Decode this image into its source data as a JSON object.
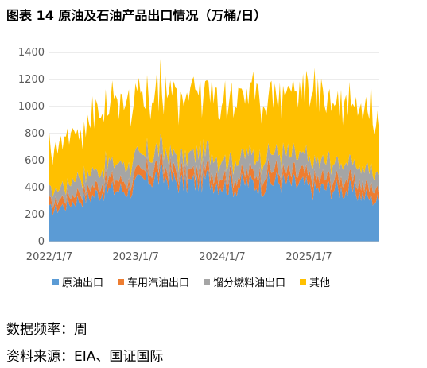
{
  "title": "图表 14 原油及石油产品出口情况（万桶/日）",
  "chart_data": {
    "type": "area",
    "stacked": true,
    "title": "",
    "xlabel": "",
    "ylabel": "",
    "ylim": [
      0,
      1400
    ],
    "yticks": [
      0,
      200,
      400,
      600,
      800,
      1000,
      1200,
      1400
    ],
    "xticks": [
      "2022/1/7",
      "2023/1/7",
      "2024/1/7",
      "2025/1/7"
    ],
    "x_range": [
      "2022/1/7",
      "2025/10/31"
    ],
    "grid": "horizontal",
    "legend_position": "bottom",
    "frequency": "weekly",
    "series": [
      {
        "name": "原油出口",
        "color": "#5B9BD5",
        "points": [
          [
            "2022/1/7",
            230
          ],
          [
            "2022/3/4",
            265
          ],
          [
            "2022/4/29",
            310
          ],
          [
            "2022/6/24",
            330
          ],
          [
            "2022/8/19",
            375
          ],
          [
            "2022/10/14",
            385
          ],
          [
            "2022/12/9",
            385
          ],
          [
            "2023/2/3",
            440
          ],
          [
            "2023/3/31",
            480
          ],
          [
            "2023/5/26",
            470
          ],
          [
            "2023/7/21",
            430
          ],
          [
            "2023/9/15",
            440
          ],
          [
            "2023/11/10",
            470
          ],
          [
            "2024/1/5",
            430
          ],
          [
            "2024/3/1",
            410
          ],
          [
            "2024/4/26",
            440
          ],
          [
            "2024/6/21",
            420
          ],
          [
            "2024/8/16",
            450
          ],
          [
            "2024/10/11",
            430
          ],
          [
            "2024/12/6",
            420
          ],
          [
            "2025/1/31",
            380
          ],
          [
            "2025/3/28",
            400
          ],
          [
            "2025/5/23",
            390
          ],
          [
            "2025/7/18",
            370
          ],
          [
            "2025/9/12",
            330
          ],
          [
            "2025/10/31",
            300
          ]
        ]
      },
      {
        "name": "车用汽油出口",
        "color": "#ED7D31",
        "points": [
          [
            "2022/1/7",
            55
          ],
          [
            "2022/3/4",
            60
          ],
          [
            "2022/4/29",
            65
          ],
          [
            "2022/6/24",
            65
          ],
          [
            "2022/8/19",
            70
          ],
          [
            "2022/10/14",
            75
          ],
          [
            "2022/12/9",
            70
          ],
          [
            "2023/2/3",
            70
          ],
          [
            "2023/3/31",
            75
          ],
          [
            "2023/5/26",
            70
          ],
          [
            "2023/7/21",
            75
          ],
          [
            "2023/9/15",
            75
          ],
          [
            "2023/11/10",
            70
          ],
          [
            "2024/1/5",
            80
          ],
          [
            "2024/3/1",
            80
          ],
          [
            "2024/4/26",
            80
          ],
          [
            "2024/6/21",
            80
          ],
          [
            "2024/8/16",
            85
          ],
          [
            "2024/10/11",
            80
          ],
          [
            "2024/12/6",
            80
          ],
          [
            "2025/1/31",
            80
          ],
          [
            "2025/3/28",
            85
          ],
          [
            "2025/5/23",
            80
          ],
          [
            "2025/7/18",
            80
          ],
          [
            "2025/9/12",
            85
          ],
          [
            "2025/10/31",
            85
          ]
        ]
      },
      {
        "name": "馏分燃料油出口",
        "color": "#A5A5A5",
        "points": [
          [
            "2022/1/7",
            70
          ],
          [
            "2022/3/4",
            85
          ],
          [
            "2022/4/29",
            105
          ],
          [
            "2022/6/24",
            115
          ],
          [
            "2022/8/19",
            110
          ],
          [
            "2022/10/14",
            120
          ],
          [
            "2022/12/9",
            115
          ],
          [
            "2023/2/3",
            115
          ],
          [
            "2023/3/31",
            120
          ],
          [
            "2023/5/26",
            125
          ],
          [
            "2023/7/21",
            120
          ],
          [
            "2023/9/15",
            125
          ],
          [
            "2023/11/10",
            130
          ],
          [
            "2024/1/5",
            115
          ],
          [
            "2024/3/1",
            120
          ],
          [
            "2024/4/26",
            125
          ],
          [
            "2024/6/21",
            120
          ],
          [
            "2024/8/16",
            125
          ],
          [
            "2024/10/11",
            130
          ],
          [
            "2024/12/6",
            125
          ],
          [
            "2025/1/31",
            120
          ],
          [
            "2025/3/28",
            125
          ],
          [
            "2025/5/23",
            120
          ],
          [
            "2025/7/18",
            125
          ],
          [
            "2025/9/12",
            120
          ],
          [
            "2025/10/31",
            120
          ]
        ]
      },
      {
        "name": "其他",
        "color": "#FFC000",
        "points": [
          [
            "2022/1/7",
            300
          ],
          [
            "2022/3/4",
            330
          ],
          [
            "2022/4/29",
            370
          ],
          [
            "2022/6/24",
            410
          ],
          [
            "2022/8/19",
            420
          ],
          [
            "2022/10/14",
            440
          ],
          [
            "2022/12/9",
            430
          ],
          [
            "2023/2/3",
            410
          ],
          [
            "2023/3/31",
            430
          ],
          [
            "2023/5/26",
            440
          ],
          [
            "2023/7/21",
            460
          ],
          [
            "2023/9/15",
            450
          ],
          [
            "2023/11/10",
            440
          ],
          [
            "2024/1/5",
            470
          ],
          [
            "2024/3/1",
            490
          ],
          [
            "2024/4/26",
            450
          ],
          [
            "2024/6/21",
            470
          ],
          [
            "2024/8/16",
            440
          ],
          [
            "2024/10/11",
            460
          ],
          [
            "2024/12/6",
            470
          ],
          [
            "2025/1/31",
            500
          ],
          [
            "2025/3/28",
            470
          ],
          [
            "2025/5/23",
            460
          ],
          [
            "2025/7/18",
            480
          ],
          [
            "2025/9/12",
            450
          ],
          [
            "2025/10/31",
            480
          ]
        ]
      }
    ]
  },
  "footer": {
    "frequency": "数据频率：周",
    "source": "资料来源：EIA、国证国际"
  }
}
